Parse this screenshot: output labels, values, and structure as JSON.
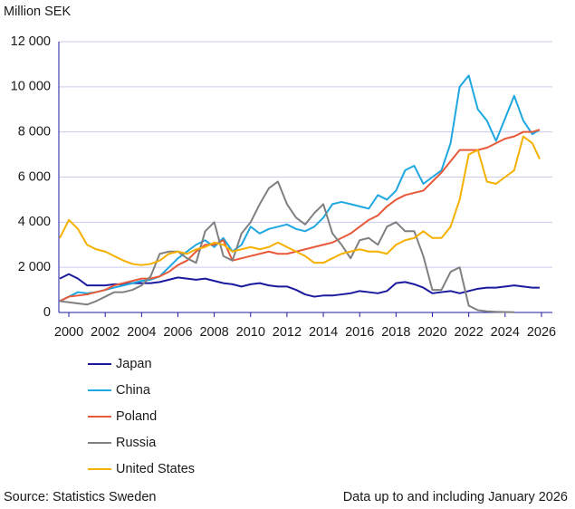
{
  "chart_data": {
    "type": "line",
    "y_label": "Million SEK",
    "source": "Source:  Statistics Sweden",
    "note": "Data up to and including January 2026",
    "x": [
      1999.5,
      2000,
      2000.5,
      2001,
      2001.5,
      2002,
      2002.5,
      2003,
      2003.5,
      2004,
      2004.5,
      2005,
      2005.5,
      2006,
      2006.5,
      2007,
      2007.5,
      2008,
      2008.5,
      2009,
      2009.5,
      2010,
      2010.5,
      2011,
      2011.5,
      2012,
      2012.5,
      2013,
      2013.5,
      2014,
      2014.5,
      2015,
      2015.5,
      2016,
      2016.5,
      2017,
      2017.5,
      2018,
      2018.5,
      2019,
      2019.5,
      2020,
      2020.5,
      2021,
      2021.5,
      2022,
      2022.5,
      2023,
      2023.5,
      2024,
      2024.5,
      2025,
      2025.5,
      2025.9
    ],
    "series": [
      {
        "name": "Japan",
        "color": "#1b1a9e",
        "values": [
          1500,
          1700,
          1500,
          1200,
          1200,
          1200,
          1250,
          1250,
          1300,
          1300,
          1300,
          1350,
          1450,
          1550,
          1500,
          1450,
          1500,
          1400,
          1300,
          1250,
          1150,
          1250,
          1300,
          1200,
          1150,
          1150,
          1000,
          800,
          700,
          750,
          750,
          800,
          850,
          950,
          900,
          850,
          950,
          1300,
          1350,
          1250,
          1100,
          850,
          900,
          950,
          850,
          950,
          1050,
          1100,
          1100,
          1150,
          1200,
          1150,
          1100,
          1100
        ]
      },
      {
        "name": "China",
        "color": "#1ea7e0",
        "values": [
          500,
          700,
          900,
          850,
          900,
          1000,
          1100,
          1200,
          1300,
          1400,
          1450,
          1600,
          2000,
          2400,
          2700,
          3000,
          3200,
          2900,
          3300,
          2700,
          3000,
          3800,
          3500,
          3700,
          3800,
          3900,
          3700,
          3600,
          3800,
          4200,
          4800,
          4900,
          4800,
          4700,
          4600,
          5200,
          5000,
          5400,
          6300,
          6500,
          5700,
          6000,
          6300,
          7500,
          10000,
          10500,
          9000,
          8500,
          7600,
          8600,
          9600,
          8500,
          7900,
          8100
        ]
      },
      {
        "name": "Poland",
        "color": "#e8593a",
        "values": [
          500,
          700,
          750,
          800,
          900,
          1000,
          1200,
          1300,
          1400,
          1500,
          1500,
          1600,
          1800,
          2100,
          2300,
          2700,
          3000,
          3000,
          3200,
          2300,
          2400,
          2500,
          2600,
          2700,
          2600,
          2600,
          2700,
          2800,
          2900,
          3000,
          3100,
          3300,
          3500,
          3800,
          4100,
          4300,
          4700,
          5000,
          5200,
          5300,
          5400,
          5800,
          6200,
          6700,
          7200,
          7200,
          7200,
          7300,
          7500,
          7700,
          7800,
          8000,
          8000,
          8100
        ]
      },
      {
        "name": "Russia",
        "color": "#808080",
        "values": [
          500,
          450,
          400,
          350,
          500,
          700,
          900,
          900,
          1000,
          1200,
          1600,
          2600,
          2700,
          2700,
          2400,
          2200,
          3600,
          4000,
          2500,
          2300,
          3500,
          4000,
          4800,
          5500,
          5800,
          4800,
          4200,
          3900,
          4400,
          4800,
          3500,
          3000,
          2400,
          3200,
          3300,
          3000,
          3800,
          4000,
          3600,
          3600,
          2500,
          1000,
          1000,
          1800,
          2000,
          300,
          100,
          50,
          30,
          20,
          10,
          null,
          null,
          null
        ]
      },
      {
        "name": "United States",
        "color": "#f5b000",
        "values": [
          3300,
          4100,
          3700,
          3000,
          2800,
          2700,
          2500,
          2300,
          2150,
          2100,
          2150,
          2300,
          2600,
          2700,
          2600,
          2800,
          2900,
          3100,
          3000,
          2700,
          2800,
          2900,
          2800,
          2900,
          3100,
          2900,
          2700,
          2500,
          2200,
          2200,
          2400,
          2600,
          2700,
          2800,
          2700,
          2700,
          2600,
          3000,
          3200,
          3300,
          3600,
          3300,
          3300,
          3800,
          5000,
          7000,
          7200,
          5800,
          5700,
          6000,
          6300,
          7800,
          7500,
          6800
        ]
      }
    ],
    "xlim": [
      1999.45,
      2026.6
    ],
    "ylim": [
      0,
      12000
    ],
    "xticks": [
      2000,
      2002,
      2004,
      2006,
      2008,
      2010,
      2012,
      2014,
      2016,
      2018,
      2020,
      2022,
      2024,
      2026
    ],
    "yticks": [
      0,
      {
        "value": 2000,
        "label": "2 000"
      },
      {
        "value": 4000,
        "label": "4 000"
      },
      {
        "value": 6000,
        "label": "6 000"
      },
      {
        "value": 8000,
        "label": "8 000"
      },
      {
        "value": 10000,
        "label": "10 000"
      },
      {
        "value": 12000,
        "label": "12 000"
      }
    ],
    "grid": true
  }
}
